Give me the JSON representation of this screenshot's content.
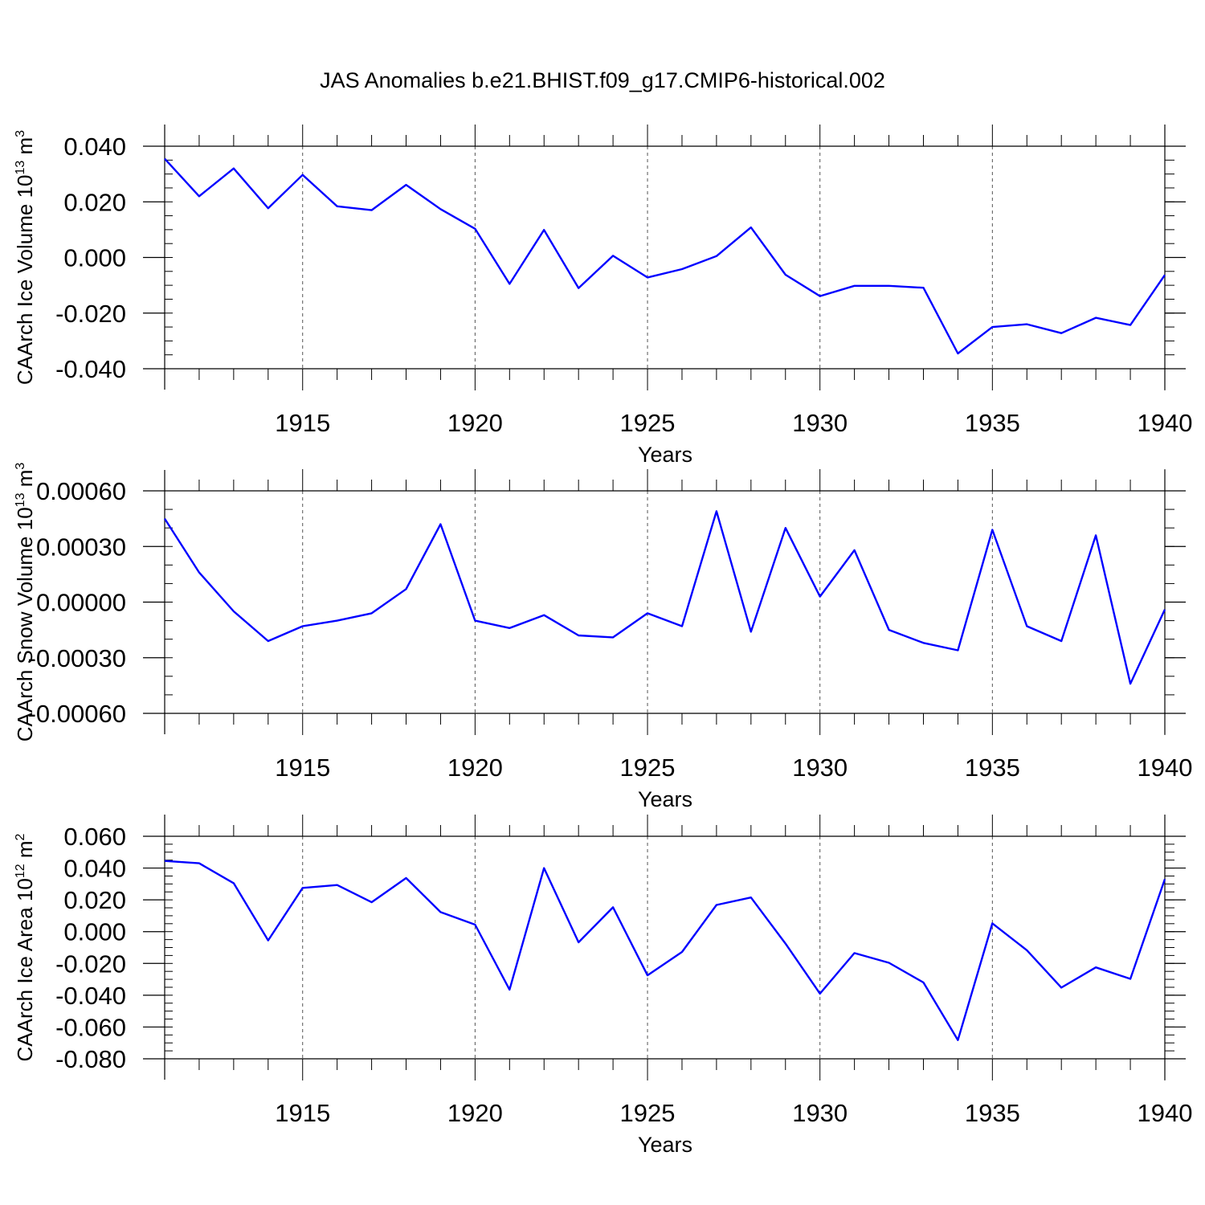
{
  "title": "JAS Anomalies b.e21.BHIST.f09_g17.CMIP6-historical.002",
  "line_color": "#0000ff",
  "chart_data": [
    {
      "type": "line",
      "ylabel": "CAArch Ice Volume 10",
      "ylabel_sup": "13",
      "ylabel_unit": " m",
      "ylabel_unit_sup": "3",
      "xlabel": "Years",
      "xlim": [
        1911,
        1940
      ],
      "ylim": [
        -0.04,
        0.04
      ],
      "x_ticks": [
        1915,
        1920,
        1925,
        1930,
        1935,
        1940
      ],
      "y_ticks": [
        -0.04,
        -0.02,
        0.0,
        0.02,
        0.04
      ],
      "y_tick_labels": [
        "-0.040",
        "-0.020",
        "0.000",
        "0.020",
        "0.040"
      ],
      "y_minor_step": 0.005,
      "x": [
        1911,
        1912,
        1913,
        1914,
        1915,
        1916,
        1917,
        1918,
        1919,
        1920,
        1921,
        1922,
        1923,
        1924,
        1925,
        1926,
        1927,
        1928,
        1929,
        1930,
        1931,
        1932,
        1933,
        1934,
        1935,
        1936,
        1937,
        1938,
        1939,
        1940
      ],
      "y": [
        0.0355,
        0.022,
        0.032,
        0.0177,
        0.0297,
        0.0184,
        0.017,
        0.0261,
        0.0174,
        0.0103,
        -0.0095,
        0.0099,
        -0.011,
        0.0006,
        -0.0072,
        -0.0042,
        0.0005,
        0.0108,
        -0.0062,
        -0.0139,
        -0.0102,
        -0.0102,
        -0.0109,
        -0.0345,
        -0.025,
        -0.024,
        -0.0272,
        -0.0217,
        -0.0243,
        -0.0063
      ]
    },
    {
      "type": "line",
      "ylabel": "CAArch Snow Volume 10",
      "ylabel_sup": "13",
      "ylabel_unit": " m",
      "ylabel_unit_sup": "3",
      "xlabel": "Years",
      "xlim": [
        1911,
        1940
      ],
      "ylim": [
        -0.0006,
        0.0006
      ],
      "x_ticks": [
        1915,
        1920,
        1925,
        1930,
        1935,
        1940
      ],
      "y_ticks": [
        -0.0006,
        -0.0003,
        0.0,
        0.0003,
        0.0006
      ],
      "y_tick_labels": [
        "-0.00060",
        "-0.00030",
        "0.00000",
        "0.00030",
        "0.00060"
      ],
      "y_minor_step": 0.0001,
      "x": [
        1911,
        1912,
        1913,
        1914,
        1915,
        1916,
        1917,
        1918,
        1919,
        1920,
        1921,
        1922,
        1923,
        1924,
        1925,
        1926,
        1927,
        1928,
        1929,
        1930,
        1931,
        1932,
        1933,
        1934,
        1935,
        1936,
        1937,
        1938,
        1939,
        1940
      ],
      "y": [
        0.00045,
        0.00016,
        -5e-05,
        -0.00021,
        -0.00013,
        -0.0001,
        -6e-05,
        7e-05,
        0.00042,
        -0.0001,
        -0.00014,
        -7e-05,
        -0.00018,
        -0.00019,
        -6e-05,
        -0.00013,
        0.00049,
        -0.00016,
        0.0004,
        3e-05,
        0.00028,
        -0.00015,
        -0.00022,
        -0.00026,
        0.00039,
        -0.00013,
        -0.00021,
        0.00036,
        -0.00044,
        -4e-05
      ]
    },
    {
      "type": "line",
      "ylabel": "CAArch Ice Area 10",
      "ylabel_sup": "12",
      "ylabel_unit": " m",
      "ylabel_unit_sup": "2",
      "xlabel": "Years",
      "xlim": [
        1911,
        1940
      ],
      "ylim": [
        -0.08,
        0.06
      ],
      "x_ticks": [
        1915,
        1920,
        1925,
        1930,
        1935,
        1940
      ],
      "y_ticks": [
        -0.08,
        -0.06,
        -0.04,
        -0.02,
        0.0,
        0.02,
        0.04,
        0.06
      ],
      "y_tick_labels": [
        "-0.080",
        "-0.060",
        "-0.040",
        "-0.020",
        "0.000",
        "0.020",
        "0.040",
        "0.060"
      ],
      "y_minor_step": 0.005,
      "x": [
        1911,
        1912,
        1913,
        1914,
        1915,
        1916,
        1917,
        1918,
        1919,
        1920,
        1921,
        1922,
        1923,
        1924,
        1925,
        1926,
        1927,
        1928,
        1929,
        1930,
        1931,
        1932,
        1933,
        1934,
        1935,
        1936,
        1937,
        1938,
        1939,
        1940
      ],
      "y": [
        0.0445,
        0.043,
        0.0305,
        -0.0055,
        0.0275,
        0.0293,
        0.0185,
        0.0337,
        0.0123,
        0.0044,
        -0.0365,
        0.04,
        -0.0067,
        0.0153,
        -0.0275,
        -0.0128,
        0.0168,
        0.0215,
        -0.0075,
        -0.039,
        -0.0135,
        -0.0196,
        -0.032,
        -0.0682,
        0.0052,
        -0.0117,
        -0.0352,
        -0.0225,
        -0.0297,
        0.033
      ]
    }
  ]
}
